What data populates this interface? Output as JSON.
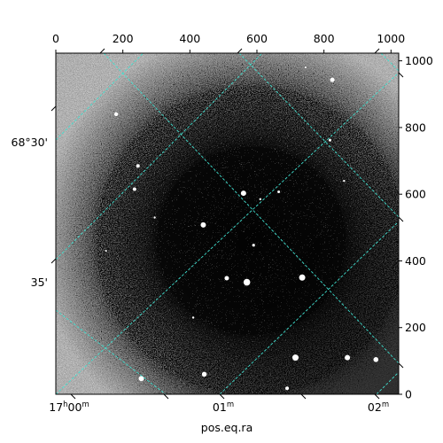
{
  "chart_data": {
    "type": "image",
    "xlabel": "pos.eq.ra",
    "ylabel": "",
    "pixel_axes": {
      "bottom_ticks": [
        0,
        200,
        400,
        600,
        800,
        1000
      ],
      "right_ticks": [
        0,
        200,
        400,
        600,
        800,
        1000
      ],
      "xlim": [
        0,
        1023
      ],
      "ylim": [
        0,
        1023
      ]
    },
    "world_axes": {
      "ra_ticks": [
        {
          "h": "17",
          "hsup": "h",
          "m": "00",
          "msup": "m"
        },
        {
          "h": "",
          "hsup": "",
          "m": "01",
          "msup": "m"
        },
        {
          "h": "",
          "hsup": "",
          "m": "02",
          "msup": "m"
        }
      ],
      "dec_ticks": [
        "68°30'",
        "35'"
      ]
    },
    "grid": true,
    "grid_color": "#40e0d0",
    "stars": [
      {
        "x": 825,
        "y": 943,
        "r": 2.5
      },
      {
        "x": 180,
        "y": 840,
        "r": 2.2
      },
      {
        "x": 245,
        "y": 685,
        "r": 2.0
      },
      {
        "x": 235,
        "y": 615,
        "r": 2.0
      },
      {
        "x": 560,
        "y": 603,
        "r": 3.0
      },
      {
        "x": 440,
        "y": 508,
        "r": 3.0
      },
      {
        "x": 590,
        "y": 447,
        "r": 1.6
      },
      {
        "x": 510,
        "y": 348,
        "r": 2.5
      },
      {
        "x": 570,
        "y": 336,
        "r": 3.8
      },
      {
        "x": 735,
        "y": 350,
        "r": 3.5
      },
      {
        "x": 715,
        "y": 110,
        "r": 3.5
      },
      {
        "x": 870,
        "y": 110,
        "r": 3.0
      },
      {
        "x": 955,
        "y": 104,
        "r": 2.8
      },
      {
        "x": 443,
        "y": 60,
        "r": 2.8
      },
      {
        "x": 255,
        "y": 47,
        "r": 3.0
      },
      {
        "x": 690,
        "y": 18,
        "r": 2.0
      },
      {
        "x": 665,
        "y": 607,
        "r": 1.5
      },
      {
        "x": 818,
        "y": 762,
        "r": 1.5
      },
      {
        "x": 295,
        "y": 530,
        "r": 1.2
      },
      {
        "x": 860,
        "y": 640,
        "r": 1.2
      },
      {
        "x": 610,
        "y": 585,
        "r": 1.2
      },
      {
        "x": 410,
        "y": 230,
        "r": 1.2
      },
      {
        "x": 150,
        "y": 430,
        "r": 1.0
      },
      {
        "x": 745,
        "y": 980,
        "r": 1.0
      }
    ]
  }
}
